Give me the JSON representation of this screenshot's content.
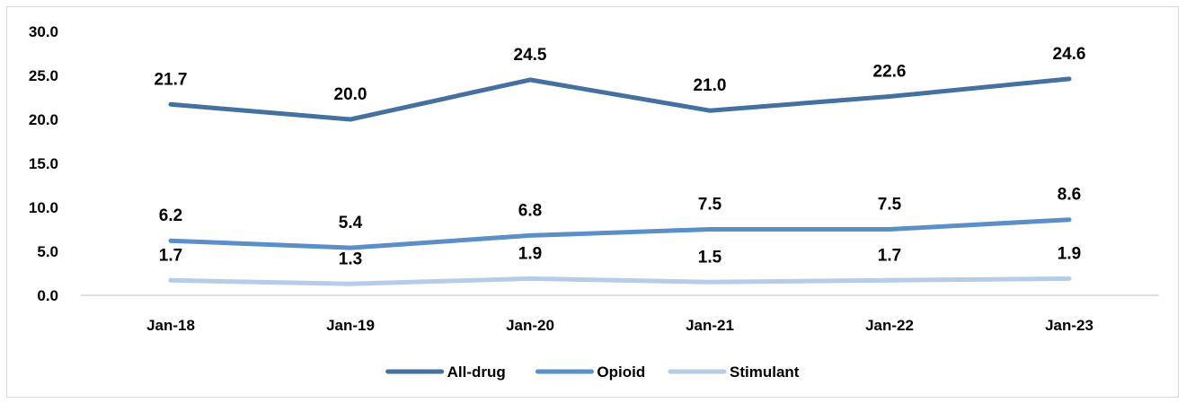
{
  "chart_data": {
    "type": "line",
    "title": "",
    "xlabel": "",
    "ylabel": "",
    "categories": [
      "Jan-18",
      "Jan-19",
      "Jan-20",
      "Jan-21",
      "Jan-22",
      "Jan-23"
    ],
    "y_ticks": [
      "0.0",
      "5.0",
      "10.0",
      "15.0",
      "20.0",
      "25.0",
      "30.0"
    ],
    "ylim": [
      0,
      30
    ],
    "grid": false,
    "legend_position": "bottom",
    "series": [
      {
        "name": "All-drug",
        "color": "#44719f",
        "values": [
          21.7,
          20.0,
          24.5,
          21.0,
          22.6,
          24.6
        ],
        "labels": [
          "21.7",
          "20.0",
          "24.5",
          "21.0",
          "22.6",
          "24.6"
        ]
      },
      {
        "name": "Opioid",
        "color": "#5b8fc7",
        "values": [
          6.2,
          5.4,
          6.8,
          7.5,
          7.5,
          8.6
        ],
        "labels": [
          "6.2",
          "5.4",
          "6.8",
          "7.5",
          "7.5",
          "8.6"
        ]
      },
      {
        "name": "Stimulant",
        "color": "#b7cce6",
        "values": [
          1.7,
          1.3,
          1.9,
          1.5,
          1.7,
          1.9
        ],
        "labels": [
          "1.7",
          "1.3",
          "1.9",
          "1.5",
          "1.7",
          "1.9"
        ]
      }
    ]
  }
}
